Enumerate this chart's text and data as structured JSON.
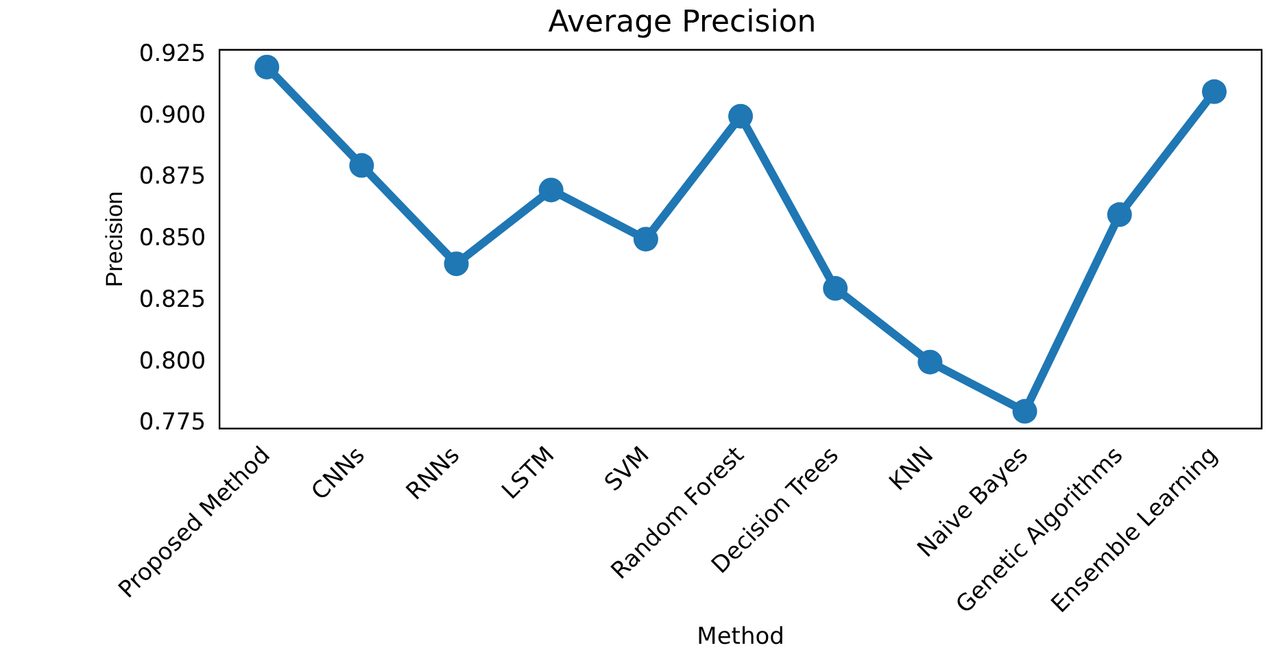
{
  "chart_data": {
    "type": "line",
    "title": "Average Precision",
    "xlabel": "Method",
    "ylabel": "Precision",
    "categories": [
      "Proposed Method",
      "CNNs",
      "RNNs",
      "LSTM",
      "SVM",
      "Random Forest",
      "Decision Trees",
      "KNN",
      "Naive Bayes",
      "Genetic Algorithms",
      "Ensemble Learning"
    ],
    "series": [
      {
        "color": "#1f77b4",
        "values": [
          0.92,
          0.88,
          0.84,
          0.87,
          0.85,
          0.9,
          0.83,
          0.8,
          0.78,
          0.86,
          0.91
        ]
      }
    ],
    "ylim": [
      0.773,
      0.927
    ],
    "yticks": [
      {
        "value": 0.775,
        "label": "0.775"
      },
      {
        "value": 0.8,
        "label": "0.800"
      },
      {
        "value": 0.825,
        "label": "0.825"
      },
      {
        "value": 0.85,
        "label": "0.850"
      },
      {
        "value": 0.875,
        "label": "0.875"
      },
      {
        "value": 0.9,
        "label": "0.900"
      },
      {
        "value": 0.925,
        "label": "0.925"
      }
    ],
    "grid": false,
    "legend": false,
    "marker": "circle",
    "line_style": "solid"
  }
}
